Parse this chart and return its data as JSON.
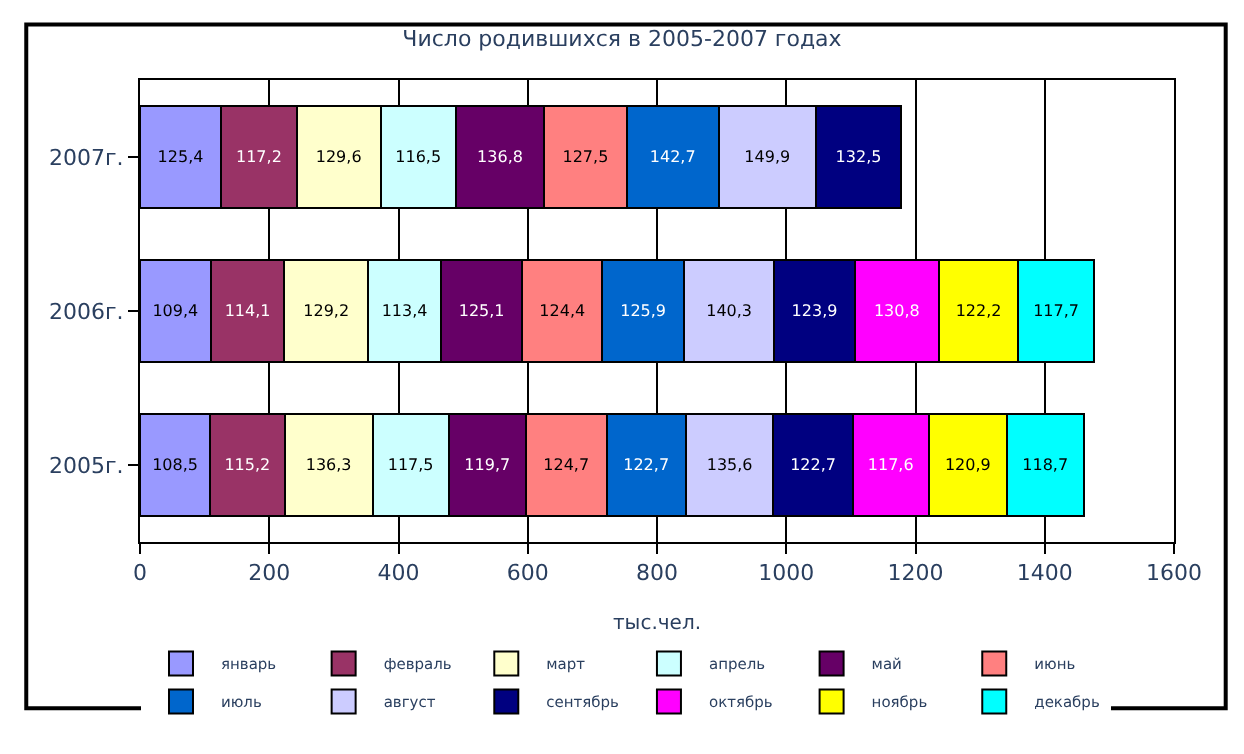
{
  "chart_data": {
    "type": "bar",
    "orientation": "horizontal",
    "stacked": true,
    "title": "Число родившихся в 2005-2007 годах",
    "xlabel": "тыс.чел.",
    "categories": [
      "2007г.",
      "2006г.",
      "2005г."
    ],
    "xlim": [
      0,
      1600
    ],
    "xticks": [
      0,
      200,
      400,
      600,
      800,
      1000,
      1200,
      1400,
      1600
    ],
    "grid": "x",
    "legend": "bottom",
    "series": [
      {
        "name": "январь",
        "color": "#9999ff",
        "values": [
          125.4,
          109.4,
          108.5
        ],
        "value_labels": [
          "125,4",
          "109,4",
          "108,5"
        ]
      },
      {
        "name": "февраль",
        "color": "#993366",
        "values": [
          117.2,
          114.1,
          115.2
        ],
        "value_labels": [
          "117,2",
          "114,1",
          "115,2"
        ]
      },
      {
        "name": "март",
        "color": "#ffffcc",
        "values": [
          129.6,
          129.2,
          136.3
        ],
        "value_labels": [
          "129,6",
          "129,2",
          "136,3"
        ]
      },
      {
        "name": "апрель",
        "color": "#ccffff",
        "values": [
          116.5,
          113.4,
          117.5
        ],
        "value_labels": [
          "116,5",
          "113,4",
          "117,5"
        ]
      },
      {
        "name": "май",
        "color": "#660066",
        "values": [
          136.8,
          125.1,
          119.7
        ],
        "value_labels": [
          "136,8",
          "125,1",
          "119,7"
        ]
      },
      {
        "name": "июнь",
        "color": "#ff8080",
        "values": [
          127.5,
          124.4,
          124.7
        ],
        "value_labels": [
          "127,5",
          "124,4",
          "124,7"
        ]
      },
      {
        "name": "июль",
        "color": "#0066cc",
        "values": [
          142.7,
          125.9,
          122.7
        ],
        "value_labels": [
          "142,7",
          "125,9",
          "122,7"
        ]
      },
      {
        "name": "август",
        "color": "#ccccff",
        "values": [
          149.9,
          140.3,
          135.6
        ],
        "value_labels": [
          "149,9",
          "140,3",
          "135,6"
        ]
      },
      {
        "name": "сентябрь",
        "color": "#000080",
        "values": [
          132.5,
          123.9,
          122.7
        ],
        "value_labels": [
          "132,5",
          "123,9",
          "122,7"
        ]
      },
      {
        "name": "октябрь",
        "color": "#ff00ff",
        "values": [
          null,
          130.8,
          117.6
        ],
        "value_labels": [
          null,
          "130,8",
          "117,6"
        ]
      },
      {
        "name": "ноябрь",
        "color": "#ffff00",
        "values": [
          null,
          122.2,
          120.9
        ],
        "value_labels": [
          null,
          "122,2",
          "120,9"
        ]
      },
      {
        "name": "декабрь",
        "color": "#00ffff",
        "values": [
          null,
          117.7,
          118.7
        ],
        "value_labels": [
          null,
          "117,7",
          "118,7"
        ]
      }
    ]
  }
}
